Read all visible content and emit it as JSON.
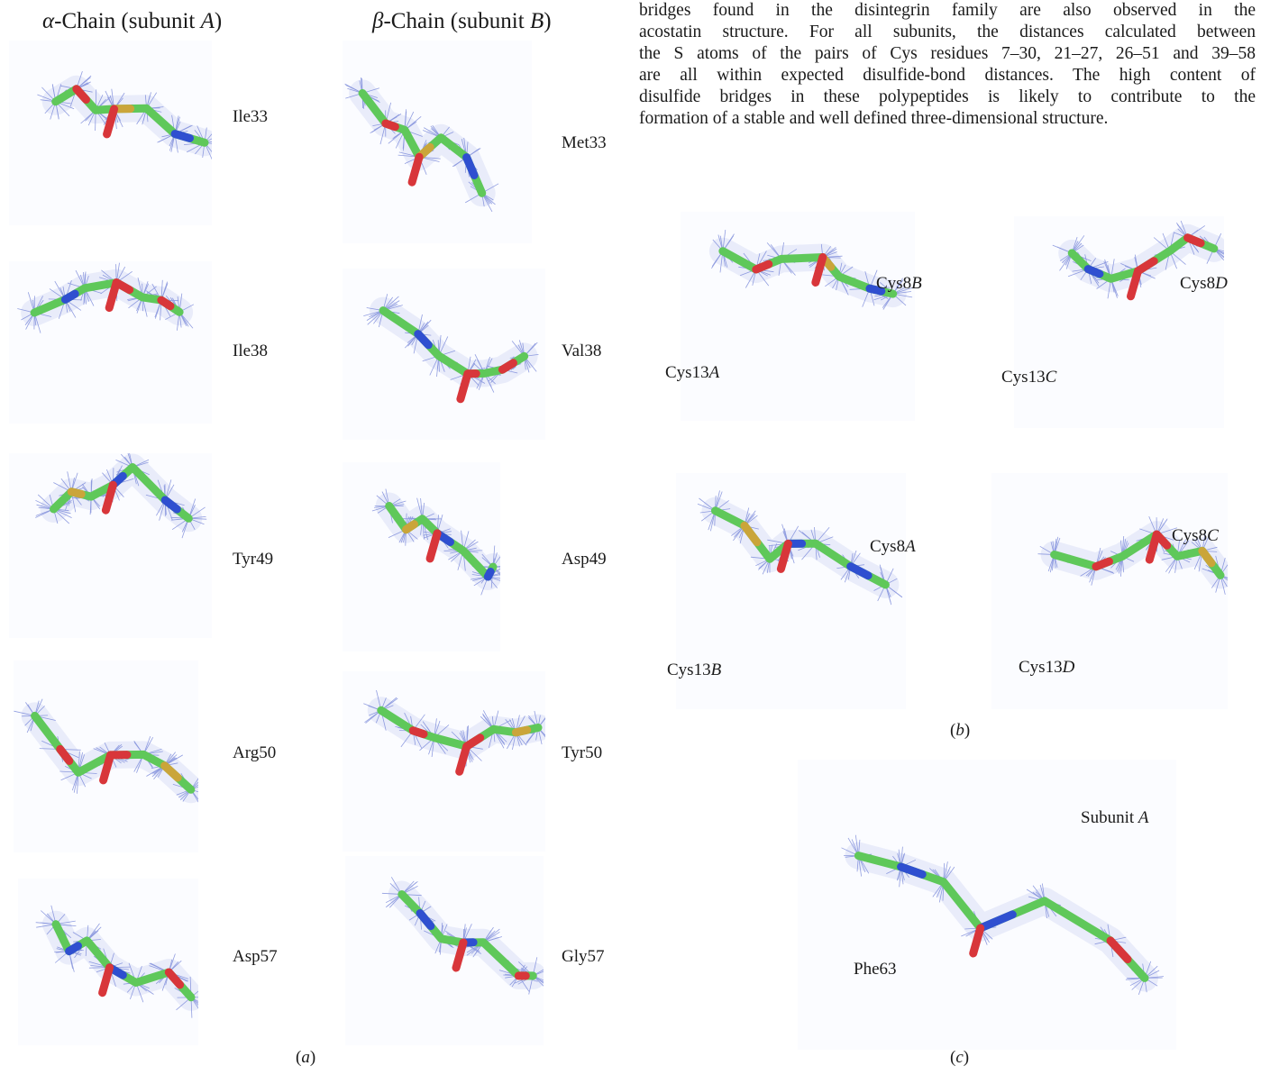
{
  "panel_a": {
    "alpha_header_greek": "α",
    "alpha_header_rest": "-Chain (subunit ",
    "alpha_header_sub": "A",
    "alpha_header_close": ")",
    "beta_header_greek": "β",
    "beta_header_rest": "-Chain (subunit ",
    "beta_header_sub": "B",
    "beta_header_close": ")",
    "alpha_residues": [
      "Ile33",
      "Ile38",
      "Tyr49",
      "Arg50",
      "Asp57"
    ],
    "beta_residues": [
      "Met33",
      "Val38",
      "Asp49",
      "Tyr50",
      "Gly57"
    ],
    "caption_open": "(",
    "caption_letter": "a",
    "caption_close": ")"
  },
  "panel_b": {
    "labels": [
      {
        "num": "Cys8",
        "chain": "B"
      },
      {
        "num": "Cys13",
        "chain": "A"
      },
      {
        "num": "Cys8",
        "chain": "D"
      },
      {
        "num": "Cys13",
        "chain": "C"
      },
      {
        "num": "Cys8",
        "chain": "A"
      },
      {
        "num": "Cys13",
        "chain": "B"
      },
      {
        "num": "Cys8",
        "chain": "C"
      },
      {
        "num": "Cys13",
        "chain": "D"
      }
    ],
    "caption_open": "(",
    "caption_letter": "b",
    "caption_close": ")"
  },
  "panel_c": {
    "subunit_label": "Subunit ",
    "subunit_chain": "A",
    "residue_label": "Phe63",
    "caption_open": "(",
    "caption_letter": "c",
    "caption_close": ")"
  },
  "body_text": {
    "lines": [
      "bridges found in the disintegrin family are also observed in the",
      "acostatin structure. For all subunits, the distances calculated between",
      "the S atoms of the pairs of Cys residues 7–30, 21–27, 26–51 and 39–58",
      "are all within expected disulfide-bond distances. The high content of",
      "disulfide bridges in these polypeptides is likely to contribute to the",
      "formation of a stable and well defined three-dimensional structure."
    ]
  },
  "colors": {
    "mesh": "#6f7fd6",
    "carbon": "#5fc85a",
    "nitrogen": "#2f4fd0",
    "oxygen": "#d8363a",
    "sulfur": "#caa53a"
  }
}
